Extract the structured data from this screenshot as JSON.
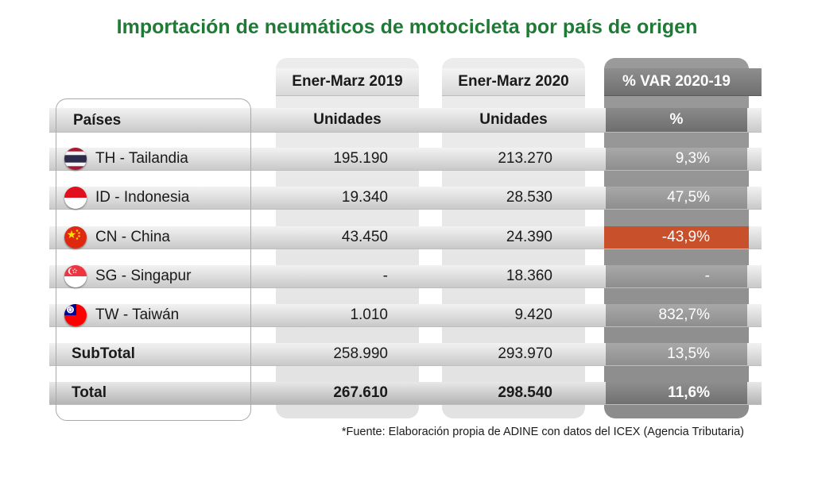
{
  "title": "Importación de neumáticos de motocicleta por país de origen",
  "source": "*Fuente: Elaboración propia de ADINE con datos del ICEX (Agencia Tributaria)",
  "colors": {
    "title": "#1f7a36",
    "negative_highlight": "#c8512c"
  },
  "chart_data": {
    "type": "table",
    "title": "Importación de neumáticos de motocicleta por país de origen",
    "column_groups": [
      "Ener-Marz 2019",
      "Ener-Marz 2020",
      "% VAR 2020-19"
    ],
    "columns": [
      "Países",
      "Unidades",
      "Unidades",
      "%"
    ],
    "rows": [
      {
        "flag": "thailand-flag-icon",
        "country": "TH - Tailandia",
        "y2019": "195.190",
        "y2020": "213.270",
        "var": "9,3%"
      },
      {
        "flag": "indonesia-flag-icon",
        "country": "ID - Indonesia",
        "y2019": "19.340",
        "y2020": "28.530",
        "var": "47,5%"
      },
      {
        "flag": "china-flag-icon",
        "country": "CN - China",
        "y2019": "43.450",
        "y2020": "24.390",
        "var": "-43,9%",
        "highlight": true
      },
      {
        "flag": "singapore-flag-icon",
        "country": "SG - Singapur",
        "y2019": "-",
        "y2020": "18.360",
        "var": "-"
      },
      {
        "flag": "taiwan-flag-icon",
        "country": "TW - Taiwán",
        "y2019": "1.010",
        "y2020": "9.420",
        "var": "832,7%"
      }
    ],
    "subtotal": {
      "label": "SubTotal",
      "y2019": "258.990",
      "y2020": "293.970",
      "var": "13,5%"
    },
    "total": {
      "label": "Total",
      "y2019": "267.610",
      "y2020": "298.540",
      "var": "11,6%"
    }
  }
}
